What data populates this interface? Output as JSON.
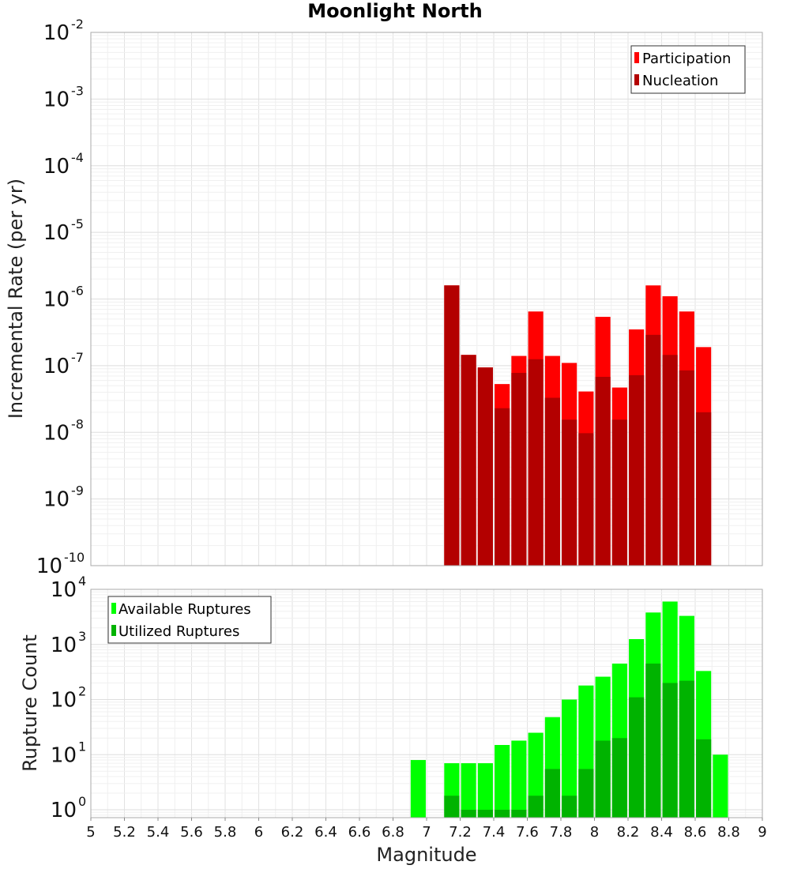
{
  "chart_data": [
    {
      "type": "bar",
      "title": "Moonlight North",
      "xlabel": "",
      "ylabel": "Incremental Rate (per yr)",
      "y_scale": "log",
      "xlim": [
        5,
        9
      ],
      "ylim": [
        1e-10,
        0.01
      ],
      "y_tick_exponents": [
        -10,
        -9,
        -8,
        -7,
        -6,
        -5,
        -4,
        -3,
        -2
      ],
      "y_tick_base": "10",
      "grid": true,
      "legend_position": "top-right",
      "x": [
        7.15,
        7.25,
        7.35,
        7.45,
        7.55,
        7.65,
        7.75,
        7.85,
        7.95,
        8.05,
        8.15,
        8.25,
        8.35,
        8.45,
        8.55,
        8.65
      ],
      "series": [
        {
          "name": "Participation",
          "color": "#ff0000",
          "values": [
            1.6e-06,
            1.45e-07,
            9.4e-08,
            5.3e-08,
            1.4e-07,
            6.5e-07,
            1.4e-07,
            1.1e-07,
            4.1e-08,
            5.4e-07,
            4.7e-08,
            3.5e-07,
            1.6e-06,
            1.1e-06,
            6.5e-07,
            1.9e-07
          ]
        },
        {
          "name": "Nucleation",
          "color": "#b30000",
          "values": [
            1.6e-06,
            1.45e-07,
            9.4e-08,
            2.3e-08,
            7.8e-08,
            1.25e-07,
            3.3e-08,
            1.55e-08,
            9.7e-09,
            6.8e-08,
            1.55e-08,
            7.2e-08,
            2.9e-07,
            1.45e-07,
            8.5e-08,
            2e-08
          ]
        }
      ]
    },
    {
      "type": "bar",
      "title": "",
      "xlabel": "Magnitude",
      "ylabel": "Rupture Count",
      "y_scale": "log",
      "xlim": [
        5,
        9
      ],
      "ylim": [
        0.72,
        10000.0
      ],
      "y_tick_exponents": [
        0,
        1,
        2,
        3,
        4
      ],
      "y_tick_base": "10",
      "x_ticks": [
        "5",
        "5.2",
        "5.4",
        "5.6",
        "5.8",
        "6",
        "6.2",
        "6.4",
        "6.6",
        "6.8",
        "7",
        "7.2",
        "7.4",
        "7.6",
        "7.8",
        "8",
        "8.2",
        "8.4",
        "8.6",
        "8.8",
        "9"
      ],
      "grid": true,
      "legend_position": "top-left",
      "x": [
        6.95,
        7.15,
        7.25,
        7.35,
        7.45,
        7.55,
        7.65,
        7.75,
        7.85,
        7.95,
        8.05,
        8.15,
        8.25,
        8.35,
        8.45,
        8.55,
        8.65,
        8.75
      ],
      "series": [
        {
          "name": "Available Ruptures",
          "color": "#00ff00",
          "values": [
            8,
            7,
            7,
            7,
            15,
            18,
            25,
            48,
            100,
            180,
            260,
            450,
            1250,
            3800,
            6000,
            3300,
            330,
            10
          ]
        },
        {
          "name": "Utilized Ruptures",
          "color": "#00b300",
          "values": [
            null,
            1.8,
            1,
            1,
            1,
            1,
            1.8,
            5.5,
            1.8,
            5.5,
            18,
            20,
            110,
            450,
            200,
            220,
            19,
            null
          ]
        }
      ]
    }
  ]
}
